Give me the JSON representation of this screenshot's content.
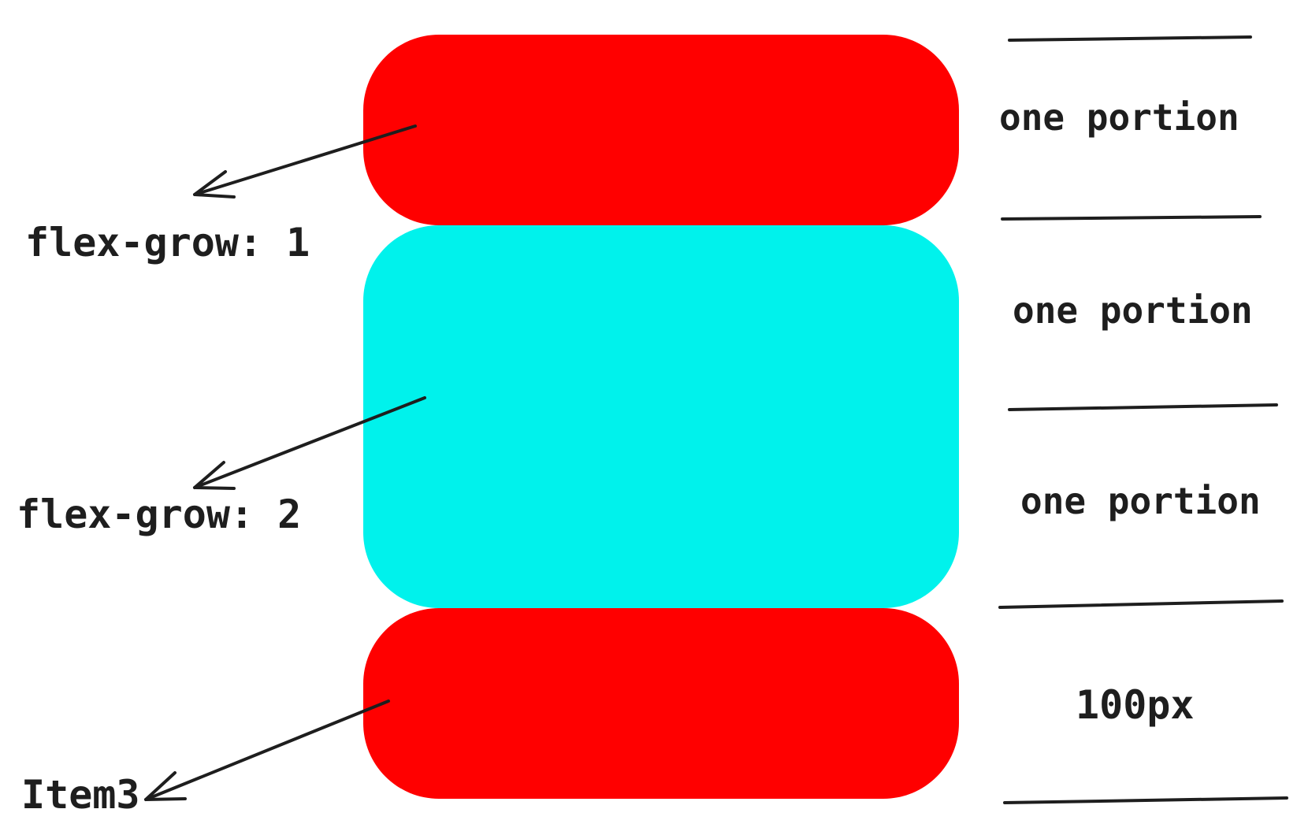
{
  "labels": {
    "item1": "flex-grow: 1",
    "item2": "flex-grow: 2",
    "item3": "Item3"
  },
  "portions": {
    "p1": "one portion",
    "p2": "one portion",
    "p3": "one portion",
    "p4": "100px"
  },
  "colors": {
    "item_red": "#ff0000",
    "item_cyan": "#00f2ec",
    "ink": "#1e1e1e"
  }
}
